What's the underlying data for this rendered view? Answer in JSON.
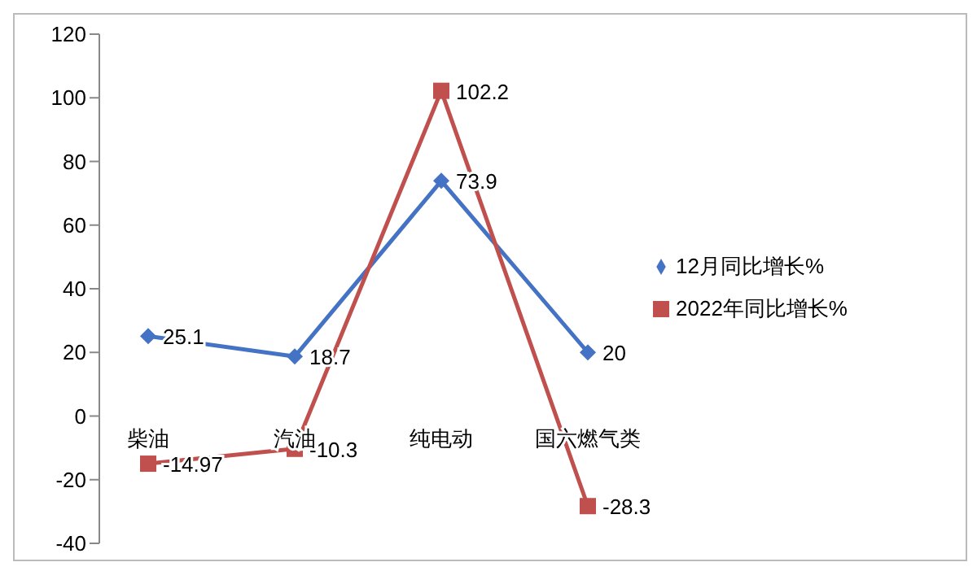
{
  "chart_data": {
    "type": "line",
    "categories": [
      "柴油",
      "汽油",
      "纯电动",
      "国六燃气类"
    ],
    "series": [
      {
        "name": "12月同比增长%",
        "color": "#4472c4",
        "marker": "diamond",
        "values": [
          25.1,
          18.7,
          73.9,
          20
        ]
      },
      {
        "name": "2022年同比增长%",
        "color": "#c0504d",
        "marker": "square",
        "values": [
          -14.97,
          -10.3,
          102.2,
          -28.3
        ]
      }
    ],
    "ylim": [
      -40,
      120
    ],
    "yticks": [
      -40,
      -20,
      0,
      20,
      40,
      60,
      80,
      100,
      120
    ],
    "legend": "right",
    "data_labels": true
  }
}
